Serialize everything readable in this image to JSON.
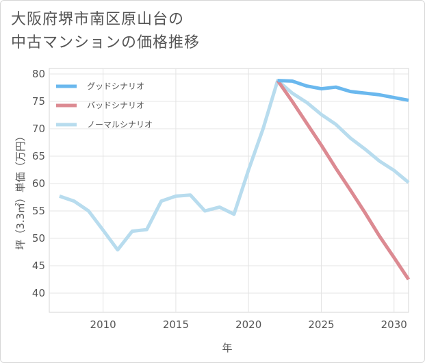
{
  "title": {
    "line1": "大阪府堺市南区原山台の",
    "line2": "中古マンションの価格推移"
  },
  "chart_data": {
    "type": "line",
    "xlabel": "年",
    "ylabel": "坪（3.3㎡）単価（万円）",
    "xlim": [
      2006.3,
      2031
    ],
    "ylim": [
      36.5,
      81
    ],
    "x_ticks": [
      2010,
      2015,
      2020,
      2025,
      2030
    ],
    "y_ticks": [
      40,
      45,
      50,
      55,
      60,
      65,
      70,
      75,
      80
    ],
    "grid": true,
    "legend_position": "top-left",
    "series": [
      {
        "name": "グッドシナリオ",
        "color": "#6ab8ee",
        "x": [
          2022,
          2023,
          2024,
          2025,
          2026,
          2027,
          2028,
          2029,
          2030,
          2031
        ],
        "y": [
          78.8,
          78.7,
          77.8,
          77.3,
          77.6,
          76.8,
          76.5,
          76.2,
          75.7,
          75.2
        ]
      },
      {
        "name": "バッドシナリオ",
        "color": "#dc8a92",
        "x": [
          2022,
          2023,
          2024,
          2025,
          2026,
          2027,
          2028,
          2029,
          2030,
          2031
        ],
        "y": [
          78.8,
          75.0,
          71.0,
          67.0,
          62.8,
          58.8,
          54.7,
          50.4,
          46.5,
          42.5
        ]
      },
      {
        "name": "ノーマルシナリオ",
        "color": "#b8dcee",
        "x": [
          2007,
          2008,
          2009,
          2010,
          2011,
          2012,
          2013,
          2014,
          2015,
          2016,
          2017,
          2018,
          2019,
          2020,
          2021,
          2022,
          2023,
          2024,
          2025,
          2026,
          2027,
          2028,
          2029,
          2030,
          2031
        ],
        "y": [
          57.7,
          56.8,
          55.0,
          51.5,
          47.9,
          51.3,
          51.6,
          56.8,
          57.7,
          57.9,
          55.0,
          55.7,
          54.4,
          62.5,
          70.0,
          78.8,
          76.5,
          74.8,
          72.6,
          70.8,
          68.3,
          66.3,
          64.1,
          62.4,
          60.2
        ]
      }
    ]
  }
}
